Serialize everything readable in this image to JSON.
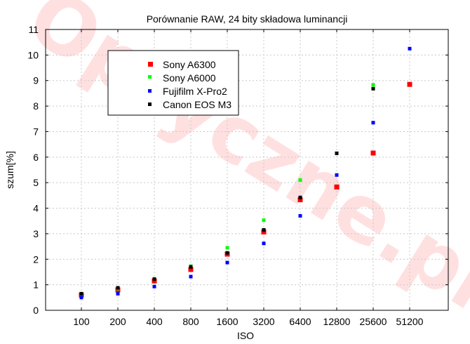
{
  "chart_data": {
    "type": "scatter",
    "title": "Porównanie RAW, 24 bity składowa luminancji",
    "xlabel": "ISO",
    "ylabel": "szum[%]",
    "x_categories": [
      "100",
      "200",
      "400",
      "800",
      "1600",
      "3200",
      "6400",
      "12800",
      "25600",
      "51200"
    ],
    "ylim": [
      0,
      11
    ],
    "yticks": [
      0,
      1,
      2,
      3,
      4,
      5,
      6,
      7,
      8,
      9,
      10,
      11
    ],
    "grid": true,
    "legend_position": "top-left",
    "watermark": "Optyczne.pl",
    "series": [
      {
        "name": "Sony A6300",
        "color": "#ff0000",
        "values": [
          0.6,
          0.8,
          1.15,
          1.6,
          2.2,
          3.07,
          4.33,
          4.83,
          6.16,
          8.85
        ]
      },
      {
        "name": "Sony A6000",
        "color": "#00ff00",
        "values": [
          0.63,
          0.85,
          1.23,
          1.73,
          2.45,
          3.53,
          5.1,
          null,
          8.83,
          null
        ]
      },
      {
        "name": "Fujifilm X-Pro2",
        "color": "#0000ff",
        "values": [
          0.5,
          0.65,
          0.93,
          1.32,
          1.87,
          2.62,
          3.7,
          5.3,
          7.35,
          10.25
        ]
      },
      {
        "name": "Canon EOS M3",
        "color": "#000000",
        "values": [
          0.65,
          0.88,
          1.22,
          1.7,
          2.25,
          3.15,
          4.42,
          6.15,
          8.68,
          null
        ]
      }
    ]
  }
}
